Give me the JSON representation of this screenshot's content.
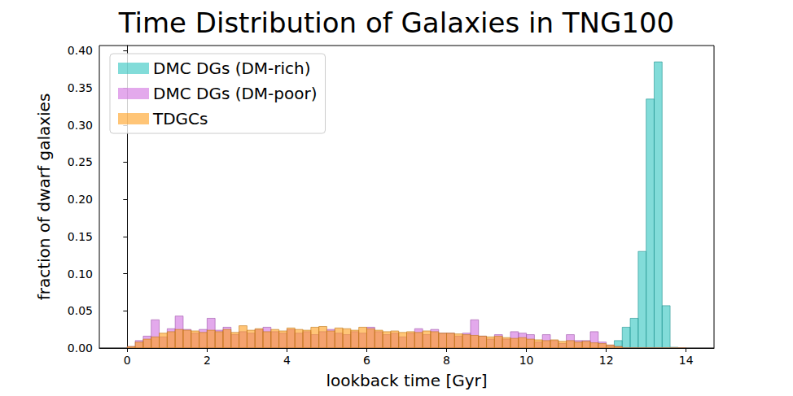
{
  "chart_data": {
    "type": "histogram",
    "title": "Time Distribution of Galaxies in TNG100",
    "x_label": "lookback time [Gyr]",
    "y_label": "fraction of dwarf galaxies",
    "bins": [
      0,
      0.2,
      0.4,
      0.6,
      0.8,
      1,
      1.2,
      1.4,
      1.6,
      1.8,
      2,
      2.2,
      2.4,
      2.6,
      2.8,
      3,
      3.2,
      3.4,
      3.6,
      3.8,
      4,
      4.2,
      4.4,
      4.6,
      4.8,
      5,
      5.2,
      5.4,
      5.6,
      5.8,
      6,
      6.2,
      6.4,
      6.6,
      6.8,
      7,
      7.2,
      7.4,
      7.6,
      7.8,
      8,
      8.2,
      8.4,
      8.6,
      8.8,
      9,
      9.2,
      9.4,
      9.6,
      9.8,
      10,
      10.2,
      10.4,
      10.6,
      10.8,
      11,
      11.2,
      11.4,
      11.6,
      11.8,
      12,
      12.2,
      12.4,
      12.6,
      12.8,
      13,
      13.2,
      13.4,
      13.6,
      13.8,
      14
    ],
    "series": [
      {
        "name": "DMC DGs (DM-rich)",
        "color": "#2ec4c0",
        "values": [
          0,
          0,
          0,
          0,
          0,
          0,
          0,
          0,
          0,
          0,
          0,
          0,
          0,
          0,
          0,
          0,
          0,
          0,
          0,
          0,
          0,
          0,
          0,
          0,
          0,
          0,
          0,
          0,
          0,
          0,
          0,
          0,
          0,
          0,
          0,
          0,
          0,
          0,
          0,
          0,
          0,
          0,
          0,
          0,
          0,
          0,
          0,
          0,
          0,
          0,
          0,
          0,
          0,
          0,
          0,
          0,
          0,
          0,
          0,
          0,
          0.002,
          0.01,
          0.028,
          0.04,
          0.13,
          0.335,
          0.385,
          0.057,
          0.001,
          0
        ]
      },
      {
        "name": "DMC DGs (DM-poor)",
        "color": "#d070e0",
        "values": [
          0.002,
          0.01,
          0.016,
          0.038,
          0.015,
          0.026,
          0.043,
          0.025,
          0.02,
          0.025,
          0.04,
          0.024,
          0.028,
          0.018,
          0.022,
          0.02,
          0.025,
          0.028,
          0.022,
          0.02,
          0.025,
          0.02,
          0.022,
          0.018,
          0.022,
          0.025,
          0.02,
          0.018,
          0.022,
          0.02,
          0.028,
          0.022,
          0.018,
          0.02,
          0.015,
          0.02,
          0.026,
          0.018,
          0.025,
          0.02,
          0.02,
          0.016,
          0.02,
          0.038,
          0.016,
          0.012,
          0.018,
          0.012,
          0.022,
          0.02,
          0.018,
          0.008,
          0.018,
          0.01,
          0.006,
          0.018,
          0.01,
          0.01,
          0.022,
          0.008,
          0.004,
          0.002,
          0,
          0,
          0,
          0,
          0,
          0,
          0,
          0
        ]
      },
      {
        "name": "TDGCs",
        "color": "#ff9f1c",
        "values": [
          0.002,
          0.008,
          0.012,
          0.015,
          0.02,
          0.022,
          0.025,
          0.024,
          0.023,
          0.021,
          0.024,
          0.022,
          0.025,
          0.021,
          0.03,
          0.024,
          0.026,
          0.022,
          0.025,
          0.023,
          0.027,
          0.025,
          0.024,
          0.028,
          0.029,
          0.023,
          0.027,
          0.026,
          0.024,
          0.028,
          0.026,
          0.024,
          0.022,
          0.023,
          0.021,
          0.022,
          0.021,
          0.023,
          0.022,
          0.02,
          0.02,
          0.019,
          0.018,
          0.017,
          0.016,
          0.015,
          0.016,
          0.014,
          0.013,
          0.014,
          0.012,
          0.011,
          0.01,
          0.011,
          0.009,
          0.01,
          0.008,
          0.009,
          0.007,
          0.006,
          0.004,
          0.002,
          0,
          0,
          0,
          0,
          0,
          0,
          0,
          0
        ]
      }
    ],
    "xlim": [
      -0.7,
      14.7
    ],
    "xticks": [
      0,
      2,
      4,
      6,
      8,
      10,
      12,
      14
    ],
    "ylim": [
      0,
      0.407
    ],
    "yticks": [
      {
        "value": 0,
        "label": "0.00"
      },
      0.05,
      {
        "value": 0.1,
        "label": "0.10"
      },
      0.15,
      {
        "value": 0.2,
        "label": "0.20"
      },
      0.25,
      {
        "value": 0.3,
        "label": "0.30"
      },
      0.35,
      {
        "value": 0.4,
        "label": "0.40"
      }
    ],
    "grid": false,
    "legend": "upper left"
  }
}
